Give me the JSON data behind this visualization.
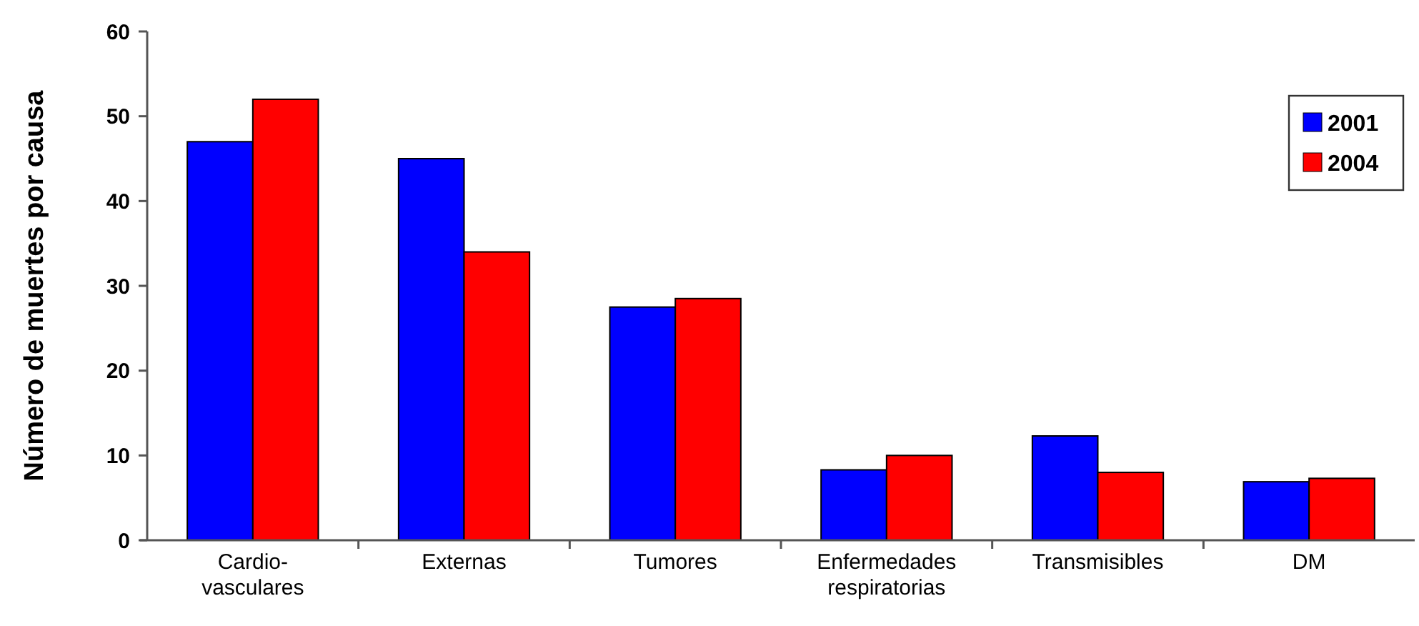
{
  "chart_data": {
    "type": "bar",
    "ylabel": "Número de muertes por causa",
    "categories": [
      "Cardio-\nvasculares",
      "Externas",
      "Tumores",
      "Enfermedades\nrespiratorias",
      "Transmisibles",
      "DM"
    ],
    "series": [
      {
        "name": "2001",
        "color": "#0000ff",
        "values": [
          47,
          45,
          27.5,
          8.3,
          12.3,
          6.9
        ]
      },
      {
        "name": "2004",
        "color": "#ff0000",
        "values": [
          52,
          34,
          28.5,
          10,
          8,
          7.3
        ]
      }
    ],
    "ylim": [
      0,
      60
    ],
    "yticks": [
      0,
      10,
      20,
      30,
      40,
      50,
      60
    ],
    "grid": false,
    "legend": "top right"
  }
}
